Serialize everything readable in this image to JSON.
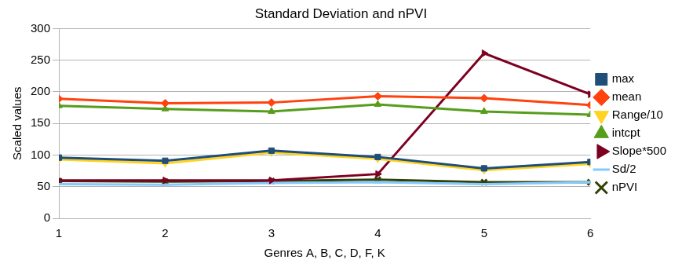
{
  "chart_data": {
    "type": "line",
    "title": "Standard Deviation and nPVI",
    "x_label": "Genres A, B, C, D, F, K",
    "y_label": "Scaled values",
    "x": [
      1,
      2,
      3,
      4,
      5,
      6
    ],
    "xlim": [
      1,
      6
    ],
    "xticks": [
      1,
      2,
      3,
      4,
      5,
      6
    ],
    "ylim": [
      0,
      300
    ],
    "yticks": [
      0,
      50,
      100,
      150,
      200,
      250,
      300
    ],
    "grid": true,
    "legend": "right",
    "series": [
      {
        "name": "max",
        "color": "#1f4e79",
        "marker": "square",
        "values": [
          96,
          91,
          107,
          97,
          79,
          89
        ]
      },
      {
        "name": "mean",
        "color": "#ff420e",
        "marker": "diamond",
        "values": [
          189,
          182,
          183,
          193,
          190,
          179
        ]
      },
      {
        "name": "Range/10",
        "color": "#ffd320",
        "marker": "triangle-down",
        "values": [
          93,
          87,
          104,
          94,
          76,
          86
        ]
      },
      {
        "name": "intcpt",
        "color": "#579d1c",
        "marker": "triangle",
        "values": [
          178,
          173,
          169,
          180,
          169,
          164
        ]
      },
      {
        "name": "Slope*500",
        "color": "#7e0021",
        "marker": "triangle-right",
        "values": [
          60,
          60,
          60,
          70,
          261,
          196
        ]
      },
      {
        "name": "Sd/2",
        "color": "#83caff",
        "marker": "dash",
        "values": [
          54,
          53,
          56,
          57,
          54,
          57
        ]
      },
      {
        "name": "nPVI",
        "color": "#314004",
        "marker": "x",
        "values": [
          59,
          58,
          59,
          61,
          57,
          57
        ]
      }
    ]
  }
}
